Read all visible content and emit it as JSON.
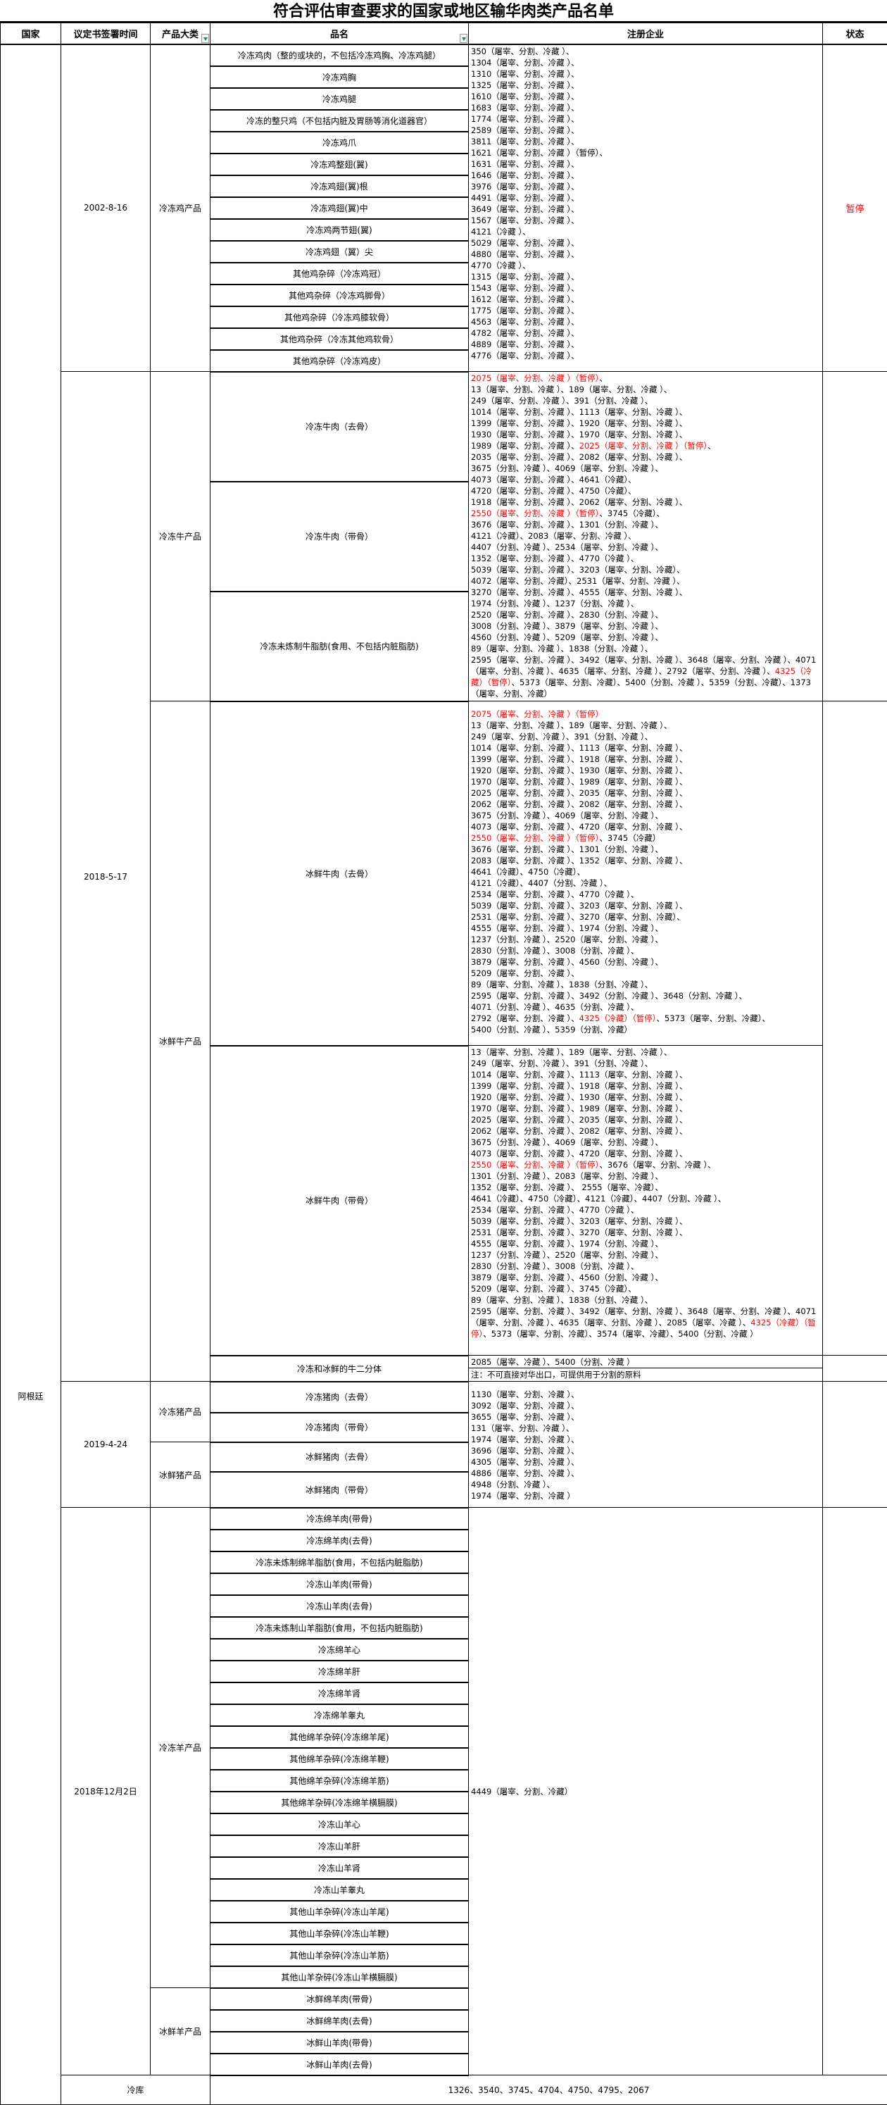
{
  "title": "符合评估审查要求的国家或地区输华肉类产品名单",
  "headers": {
    "country": "国家",
    "date": "议定书签署时间",
    "category": "产品大类",
    "name": "品名",
    "enterprises": "注册企业",
    "status": "状态"
  },
  "country": "阿根廷",
  "colors": {
    "suspended": "#ff0000",
    "filter_arrow": "#00a050"
  },
  "chicken": {
    "date": "2002-8-16",
    "category": "冷冻鸡产品",
    "status": "暂停",
    "names": [
      "冷冻鸡肉（整的或块的，不包括冷冻鸡胸、冷冻鸡腿）",
      "冷冻鸡胸",
      "冷冻鸡腿",
      "冷冻的整只鸡（不包括内脏及胃肠等消化道器官）",
      "冷冻鸡爪",
      "冷冻鸡整翅(翼)",
      "冷冻鸡翅(翼)根",
      "冷冻鸡翅(翼)中",
      "冷冻鸡两节翅(翼)",
      "冷冻鸡翅（翼）尖",
      "其他鸡杂碎（冷冻鸡冠）",
      "其他鸡杂碎（冷冻鸡脚骨）",
      "其他鸡杂碎（冷冻鸡膝软骨）",
      "其他鸡杂碎（冷冻其他鸡软骨）",
      "其他鸡杂碎（冷冻鸡皮）"
    ],
    "enterprises": [
      "350（屠宰、分割、冷藏 ）、",
      "1304（屠宰、分割、冷藏 ）、",
      "1310（屠宰、分割、冷藏 ）、",
      "1325（屠宰、分割、冷藏 ）、",
      "1610（屠宰、分割、冷藏 ）、",
      "1683（屠宰、分割、冷藏 ）、",
      "1774（屠宰、分割、冷藏 ）、",
      "2589（屠宰、分割、冷藏 ）、",
      "3811（屠宰、分割、冷藏 ）、",
      "1621（屠宰、分割、冷藏 ）（暂停）、",
      "1631（屠宰、分割、冷藏 ）、",
      "1646（屠宰、分割、冷藏 ）、",
      "3976（屠宰、分割、冷藏 ）、",
      "4491（屠宰、分割、冷藏 ）、",
      "3649（屠宰、分割、冷藏 ）、",
      "1567（屠宰、分割、冷藏 ）、",
      "4121（冷藏 ）、",
      "5029（屠宰、分割、冷藏 ）、",
      "4880（屠宰、分割、冷藏 ）、",
      "4770（冷藏 ）、",
      "1315（屠宰、分割、冷藏 ）、",
      "1543（屠宰、分割、冷藏 ）、",
      "1612（屠宰、分割、冷藏 ）、",
      "1775（屠宰、分割、冷藏 ）、",
      "4563（屠宰、分割、冷藏 ）、",
      "4782（屠宰、分割、冷藏 ）、",
      "4889（屠宰、分割、冷藏 ）、",
      "4776（屠宰、分割、冷藏 ）、"
    ]
  },
  "beef": {
    "date": "2018-5-17",
    "frozen": {
      "category": "冷冻牛产品",
      "names": [
        "冷冻牛肉（去骨）",
        "冷冻牛肉（带骨）",
        "冷冻未炼制牛脂肪(食用、不包括内脏脂肪)"
      ],
      "enterprises": [
        [
          {
            "t": "2075（屠宰、分割、冷藏 ）（暂停）",
            "red": true
          },
          {
            "t": "、"
          }
        ],
        "13（屠宰、分割、冷藏 ）、189（屠宰、分割、冷藏 ）、",
        "249（屠宰、分割、冷藏 ）、391（分割、冷藏 ）、",
        "1014（屠宰、分割、冷藏 ）、1113（屠宰、分割、冷藏 ）、",
        "1399（屠宰、分割、冷藏 ）、1920（屠宰、分割、冷藏 ）、",
        "1930（屠宰、分割、冷藏 ）、1970（屠宰、分割、冷藏 ）、",
        [
          {
            "t": "1989（屠宰、分割、冷藏 ）、"
          },
          {
            "t": "2025（屠宰、分割、冷藏 ）（暂停）",
            "red": true
          },
          {
            "t": "、"
          }
        ],
        "2035（屠宰、分割、冷藏 ）、2082（屠宰、分割、冷藏 ）、",
        "3675（分割、冷藏 ）、4069（屠宰、分割、冷藏 ）、",
        "4073（屠宰、分割、冷藏 ）、4641（冷藏）、",
        "4720（屠宰、分割、冷藏 ）、4750（冷藏）、",
        "1918（屠宰、分割、冷藏 ）、2062（屠宰、分割、冷藏 ）、",
        [
          {
            "t": "2550（屠宰、分割、冷藏 ）（暂停）",
            "red": true
          },
          {
            "t": "、3745（冷藏）、"
          }
        ],
        "3676（屠宰、分割、冷藏 ）、1301（分割、冷藏 ）、",
        "4121（冷藏）、2083（屠宰、分割、冷藏 ）、",
        "4407（分割、冷藏 ）、2534（屠宰、分割、冷藏 ）、",
        "1352（屠宰、分割、冷藏 ）、4770（冷藏 ）、",
        "5039（屠宰、分割、冷藏 ）、3203（屠宰、分割、冷藏）、",
        "4072（屠宰、分割、冷藏）、2531（屠宰、分割、冷藏 ）、",
        "3270（屠宰、分割、冷藏 ）、4555（屠宰、分割、冷藏 ）、",
        "1974（分割、冷藏 ）、1237（分割、冷藏 ）、",
        "2520（屠宰、分割、冷藏 ）、2830（分割、冷藏 ）、",
        "3008（分割、冷藏 ）、3879（屠宰、分割、冷藏 ）、",
        "4560（分割、冷藏 ）、5209（屠宰、分割、冷藏 ）、",
        "89（屠宰、分割、冷藏 ）、1838（分割、冷藏 ）、",
        [
          {
            "t": "2595（屠宰、分割、冷藏 ）、3492（屠宰、分割、冷藏 ）、3648（屠宰、分割、冷藏 ）、4071（屠宰、分割、冷藏 ）、4635（屠宰、分割、冷藏 ）、2792（屠宰、分割、冷藏 ）、"
          },
          {
            "t": "4325（冷藏）（暂停）",
            "red": true
          },
          {
            "t": "、5373（屠宰、分割、冷藏）、5400（分割、冷藏 ）、5359（分割、冷藏）、1373（屠宰、分割、冷藏）"
          }
        ]
      ]
    },
    "fresh": {
      "category": "冰鲜牛产品",
      "names": [
        "冰鲜牛肉（去骨）",
        "冰鲜牛肉（带骨）",
        "冷冻和冰鲜的牛二分体"
      ],
      "boneless_enterprises": [
        [
          {
            "t": "2075（屠宰、分割、冷藏 ）（暂停）",
            "red": true
          }
        ],
        "13（屠宰、分割、冷藏 ）、189（屠宰、分割、冷藏 ）、",
        "249（屠宰、分割、冷藏 ）、391（分割、冷藏 ）、",
        "1014（屠宰、分割、冷藏 ）、1113（屠宰、分割、冷藏 ）、",
        "1399（屠宰、分割、冷藏 ）、1918（屠宰、分割、冷藏 ）、",
        "1920（屠宰、分割、冷藏 ）、1930（屠宰、分割、冷藏 ）、",
        "1970（屠宰、分割、冷藏 ）、1989（屠宰、分割、冷藏 ）、",
        "2025（屠宰、分割、冷藏 ）、2035（屠宰、分割、冷藏 ）、",
        "2062（屠宰、分割、冷藏 ）、2082（屠宰、分割、冷藏 ）、",
        "3675（分割、冷藏 ）、4069（屠宰、分割、冷藏 ）、",
        "4073（屠宰、分割、冷藏 ）、4720（屠宰、分割、冷藏 ）、",
        [
          {
            "t": "2550（屠宰、分割、冷藏 ）（暂停）",
            "red": true
          },
          {
            "t": "、3745（冷藏）"
          }
        ],
        "3676（屠宰、分割、冷藏 ）、1301（分割、冷藏 ）、",
        "2083（屠宰、分割、冷藏 ）、1352（屠宰、分割、冷藏 ）、",
        "4641（冷藏）、4750（冷藏）、",
        "4121（冷藏）、4407（分割、冷藏 ）、",
        "2534（屠宰、分割、冷藏 ）、4770（冷藏 ）、",
        "5039（屠宰、分割、冷藏 ）、3203（屠宰、分割、冷藏 ）、",
        "2531（屠宰、分割、冷藏 ）、3270（屠宰、分割、冷藏）、",
        "4555（屠宰、分割、冷藏 ）、1974（分割、冷藏 ）、",
        "1237（分割、冷藏 ）、2520（屠宰、分割、冷藏 ）、",
        "2830（分割、冷藏 ）、3008（分割、冷藏 ）、",
        "3879（屠宰、分割、冷藏 ）、4560（分割、冷藏 ）、",
        "5209（屠宰、分割、冷藏 ）、",
        "89（屠宰、分割、冷藏 ）、1838（分割、冷藏 ）、",
        "2595（屠宰、分割、冷藏 ）、3492（分割、冷藏 ）、3648（分割、冷藏 ）、",
        "4071（分割、冷藏 ）、4635（分割、冷藏 ）、",
        [
          {
            "t": "2792（屠宰、分割、冷藏 ）、"
          },
          {
            "t": "4325（冷藏）（暂停）",
            "red": true
          },
          {
            "t": "、5373（屠宰、分割、冷藏）、"
          }
        ],
        "5400（分割、冷藏 ）、5359（分割、冷藏）"
      ],
      "bonein_enterprises": [
        "13（屠宰、分割、冷藏 ）、189（屠宰、分割、冷藏 ）、",
        "249（屠宰、分割、冷藏 ）、391（分割、冷藏 ）、",
        "1014（屠宰、分割、冷藏 ）、1113（屠宰、分割、冷藏 ）、",
        "1399（屠宰、分割、冷藏 ）、1918（屠宰、分割、冷藏 ）、",
        "1920（屠宰、分割、冷藏 ）、1930（屠宰、分割、冷藏 ）、",
        "1970（屠宰、分割、冷藏 ）、1989（屠宰、分割、冷藏 ）、",
        "2025（屠宰、分割、冷藏 ）、2035（屠宰、分割、冷藏 ）、",
        "2062（屠宰、分割、冷藏 ）、2082（屠宰、分割、冷藏 ）、",
        "3675（分割、冷藏 ）、4069（屠宰、分割、冷藏 ）、",
        "4073（屠宰、分割、冷藏 ）、4720（屠宰、分割、冷藏 ）、",
        [
          {
            "t": "2550（屠宰、分割、冷藏 ）（暂停）",
            "red": true
          },
          {
            "t": "、3676（屠宰、分割、冷藏 ）、"
          }
        ],
        "1301（分割、冷藏 ）、2083（屠宰、分割、冷藏 ）、",
        "1352（屠宰、分割、冷藏 ）、  2555（屠宰、冷藏）、",
        "4641（冷藏）、4750（冷藏）、4121（冷藏）、4407（分割、冷藏 ）、",
        "2534（屠宰、分割、冷藏 ）、4770（冷藏 ）、",
        "5039（屠宰、分割、冷藏 ）、3203（屠宰、分割、冷藏 ）、",
        "2531（屠宰、分割、冷藏 ）、3270（屠宰、分割、冷藏 ）、",
        "4555（屠宰、分割、冷藏 ）、1974（分割、冷藏 ）、",
        "1237（分割、冷藏 ）、2520（屠宰、分割、冷藏 ）、",
        "2830（分割、冷藏 ）、3008（分割、冷藏 ）、",
        "3879（屠宰、分割、冷藏 ）、4560（分割、冷藏 ）、",
        "5209（屠宰、分割、冷藏 ）、3745（冷藏）、",
        "89（屠宰、分割、冷藏 ）、1838（分割、冷藏 ）、",
        [
          {
            "t": "2595（屠宰、分割、冷藏 ）、3492（屠宰、分割、冷藏 ）、3648（屠宰、分割、冷藏 ）、4071（屠宰、分割、冷藏 ）、4635（屠宰、分割、冷藏 ）、2085（屠宰、冷藏 ）、"
          },
          {
            "t": "4325（冷藏）（暂停）",
            "red": true
          },
          {
            "t": "、5373（屠宰、分割、冷藏）、3574（屠宰、冷藏）、5400（分割、冷藏 ）"
          }
        ]
      ],
      "halves_enterprises": "2085（屠宰、冷藏 ）、5400（分割、冷藏 ）",
      "halves_note": "注：不可直接对华出口，可提供用于分割的原料"
    }
  },
  "pork": {
    "date": "2019-4-24",
    "frozen_category": "冷冻猪产品",
    "fresh_category": "冰鲜猪产品",
    "names": [
      "冷冻猪肉（去骨）",
      "冷冻猪肉（带骨）",
      "冰鲜猪肉（去骨）",
      "冰鲜猪肉（带骨）"
    ],
    "enterprises": [
      "1130（屠宰、分割、冷藏 ）、",
      "3092（屠宰、分割、冷藏 ）、",
      "3655（屠宰、分割、冷藏 ）、",
      "131（屠宰、分割、冷藏 ）、",
      "1974（屠宰、分割、冷藏 ）、",
      "3696（屠宰、分割、冷藏 ）、",
      "4305（屠宰、分割、冷藏 ）、",
      "4886（屠宰、分割、冷藏 ）、",
      "4948（分割、冷藏 ）、",
      "1974（屠宰、分割、冷藏 ）"
    ]
  },
  "sheep": {
    "date": "2018年12月2日",
    "frozen_category": "冷冻羊产品",
    "fresh_category": "冰鲜羊产品",
    "frozen_names": [
      "冷冻绵羊肉(带骨)",
      "冷冻绵羊肉(去骨)",
      "冷冻未炼制绵羊脂肪(食用，不包括内脏脂肪)",
      "冷冻山羊肉(带骨)",
      "冷冻山羊肉(去骨)",
      "冷冻未炼制山羊脂肪(食用，不包括内脏脂肪)",
      "冷冻绵羊心",
      "冷冻绵羊肝",
      "冷冻绵羊肾",
      "冷冻绵羊睾丸",
      "其他绵羊杂碎(冷冻绵羊尾)",
      "其他绵羊杂碎(冷冻绵羊鞭)",
      "其他绵羊杂碎(冷冻绵羊筋)",
      "其他绵羊杂碎(冷冻绵羊横膈膜)",
      "冷冻山羊心",
      "冷冻山羊肝",
      "冷冻山羊肾",
      "冷冻山羊睾丸",
      "其他山羊杂碎(冷冻山羊尾)",
      "其他山羊杂碎(冷冻山羊鞭)",
      "其他山羊杂碎(冷冻山羊筋)",
      "其他山羊杂碎(冷冻山羊横膈膜)"
    ],
    "fresh_names": [
      "冰鲜绵羊肉(带骨)",
      "冰鲜绵羊肉(去骨)",
      "冰鲜山羊肉(带骨)",
      "冰鲜山羊肉(去骨)"
    ],
    "enterprises": "4449（屠宰、分割、冷藏）"
  },
  "cold_storage": {
    "label": "冷库",
    "list": "1326、3540、3745、4704、4750、4795、2067"
  }
}
